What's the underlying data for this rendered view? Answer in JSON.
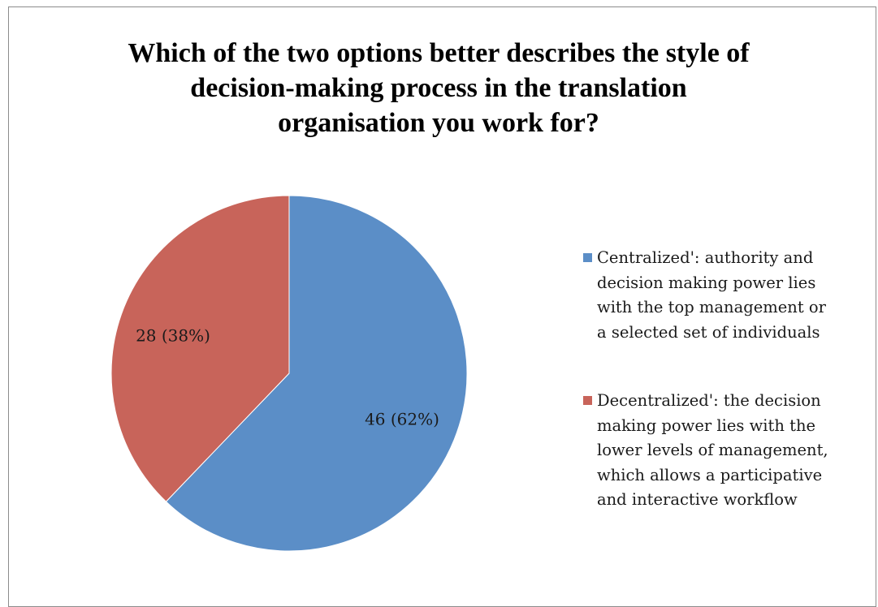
{
  "chart_data": {
    "type": "pie",
    "title": "Which of the two options better describes the style of decision-making process in the translation organisation you work for?",
    "title_lines": [
      "Which of the two options better describes the style of",
      "decision-making process in the translation",
      "organisation you work for?"
    ],
    "categories": [
      "Centralized': authority and decision making power lies with the top management or a selected set of individuals",
      "Decentralized': the decision making power lies with the lower levels of management, which allows a participative and interactive workflow"
    ],
    "legend_lines": [
      "Centralized': authority and\ndecision making power lies\nwith the top management or\na selected set of individuals",
      "Decentralized': the decision\nmaking power lies with the\nlower levels of management,\nwhich allows a participative\nand interactive workflow"
    ],
    "values": [
      46,
      28
    ],
    "percentages": [
      62,
      38
    ],
    "data_labels": [
      "46 (62%)",
      "28 (38%)"
    ],
    "colors": [
      "#5b8ec7",
      "#c8645a"
    ],
    "legend_position": "right"
  }
}
